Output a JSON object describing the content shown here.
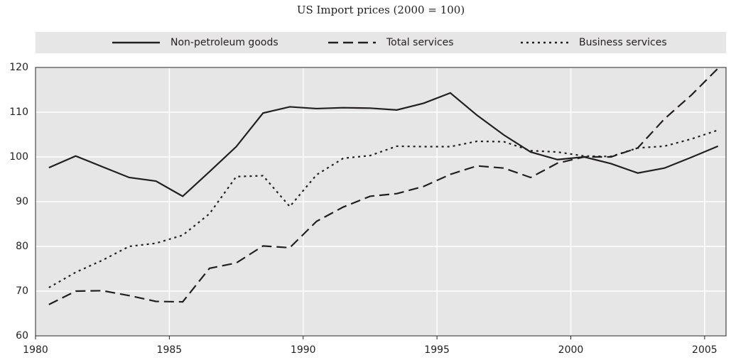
{
  "chart_data": {
    "type": "line",
    "title": "US Import prices (2000 = 100)",
    "x": [
      1980.5,
      1981.5,
      1982.5,
      1983.5,
      1984.5,
      1985.5,
      1986.5,
      1987.5,
      1988.5,
      1989.5,
      1990.5,
      1991.5,
      1992.5,
      1993.5,
      1994.5,
      1995.5,
      1996.5,
      1997.5,
      1998.5,
      1999.5,
      2000.5,
      2001.5,
      2002.5,
      2003.5,
      2004.5,
      2005.5
    ],
    "series": [
      {
        "name": "Non-petroleum goods",
        "color": "#231f20",
        "dash": "solid",
        "values": [
          97.6,
          100.2,
          97.8,
          95.4,
          94.6,
          91.2,
          96.7,
          102.3,
          109.8,
          111.2,
          110.8,
          111.0,
          110.9,
          110.5,
          112.0,
          114.3,
          109.3,
          104.9,
          101.1,
          99.4,
          100.0,
          98.5,
          96.4,
          97.5,
          99.9,
          102.4
        ]
      },
      {
        "name": "Total services",
        "color": "#231f20",
        "dash": "dashed",
        "values": [
          67.0,
          70.0,
          70.1,
          69.0,
          67.7,
          67.6,
          75.1,
          76.3,
          80.1,
          79.7,
          85.6,
          88.8,
          91.2,
          91.8,
          93.4,
          96.1,
          98.0,
          97.5,
          95.4,
          98.6,
          100.0,
          100.0,
          102.0,
          108.5,
          113.8,
          119.8
        ]
      },
      {
        "name": "Business services",
        "color": "#231f20",
        "dash": "dotted",
        "values": [
          70.8,
          74.2,
          76.9,
          80.0,
          80.7,
          82.5,
          87.3,
          95.6,
          95.8,
          88.9,
          96.0,
          99.7,
          100.3,
          102.4,
          102.3,
          102.3,
          103.5,
          103.4,
          101.4,
          101.1,
          100.2,
          100.1,
          102.0,
          102.4,
          104.0,
          106.0
        ]
      }
    ],
    "xlim": [
      1980,
      2005.8
    ],
    "xticks": [
      1980,
      1985,
      1990,
      1995,
      2000,
      2005
    ],
    "ylim": [
      60,
      120
    ],
    "yticks": [
      60,
      70,
      80,
      90,
      100,
      110,
      120
    ],
    "grid": true,
    "legend": "top"
  }
}
